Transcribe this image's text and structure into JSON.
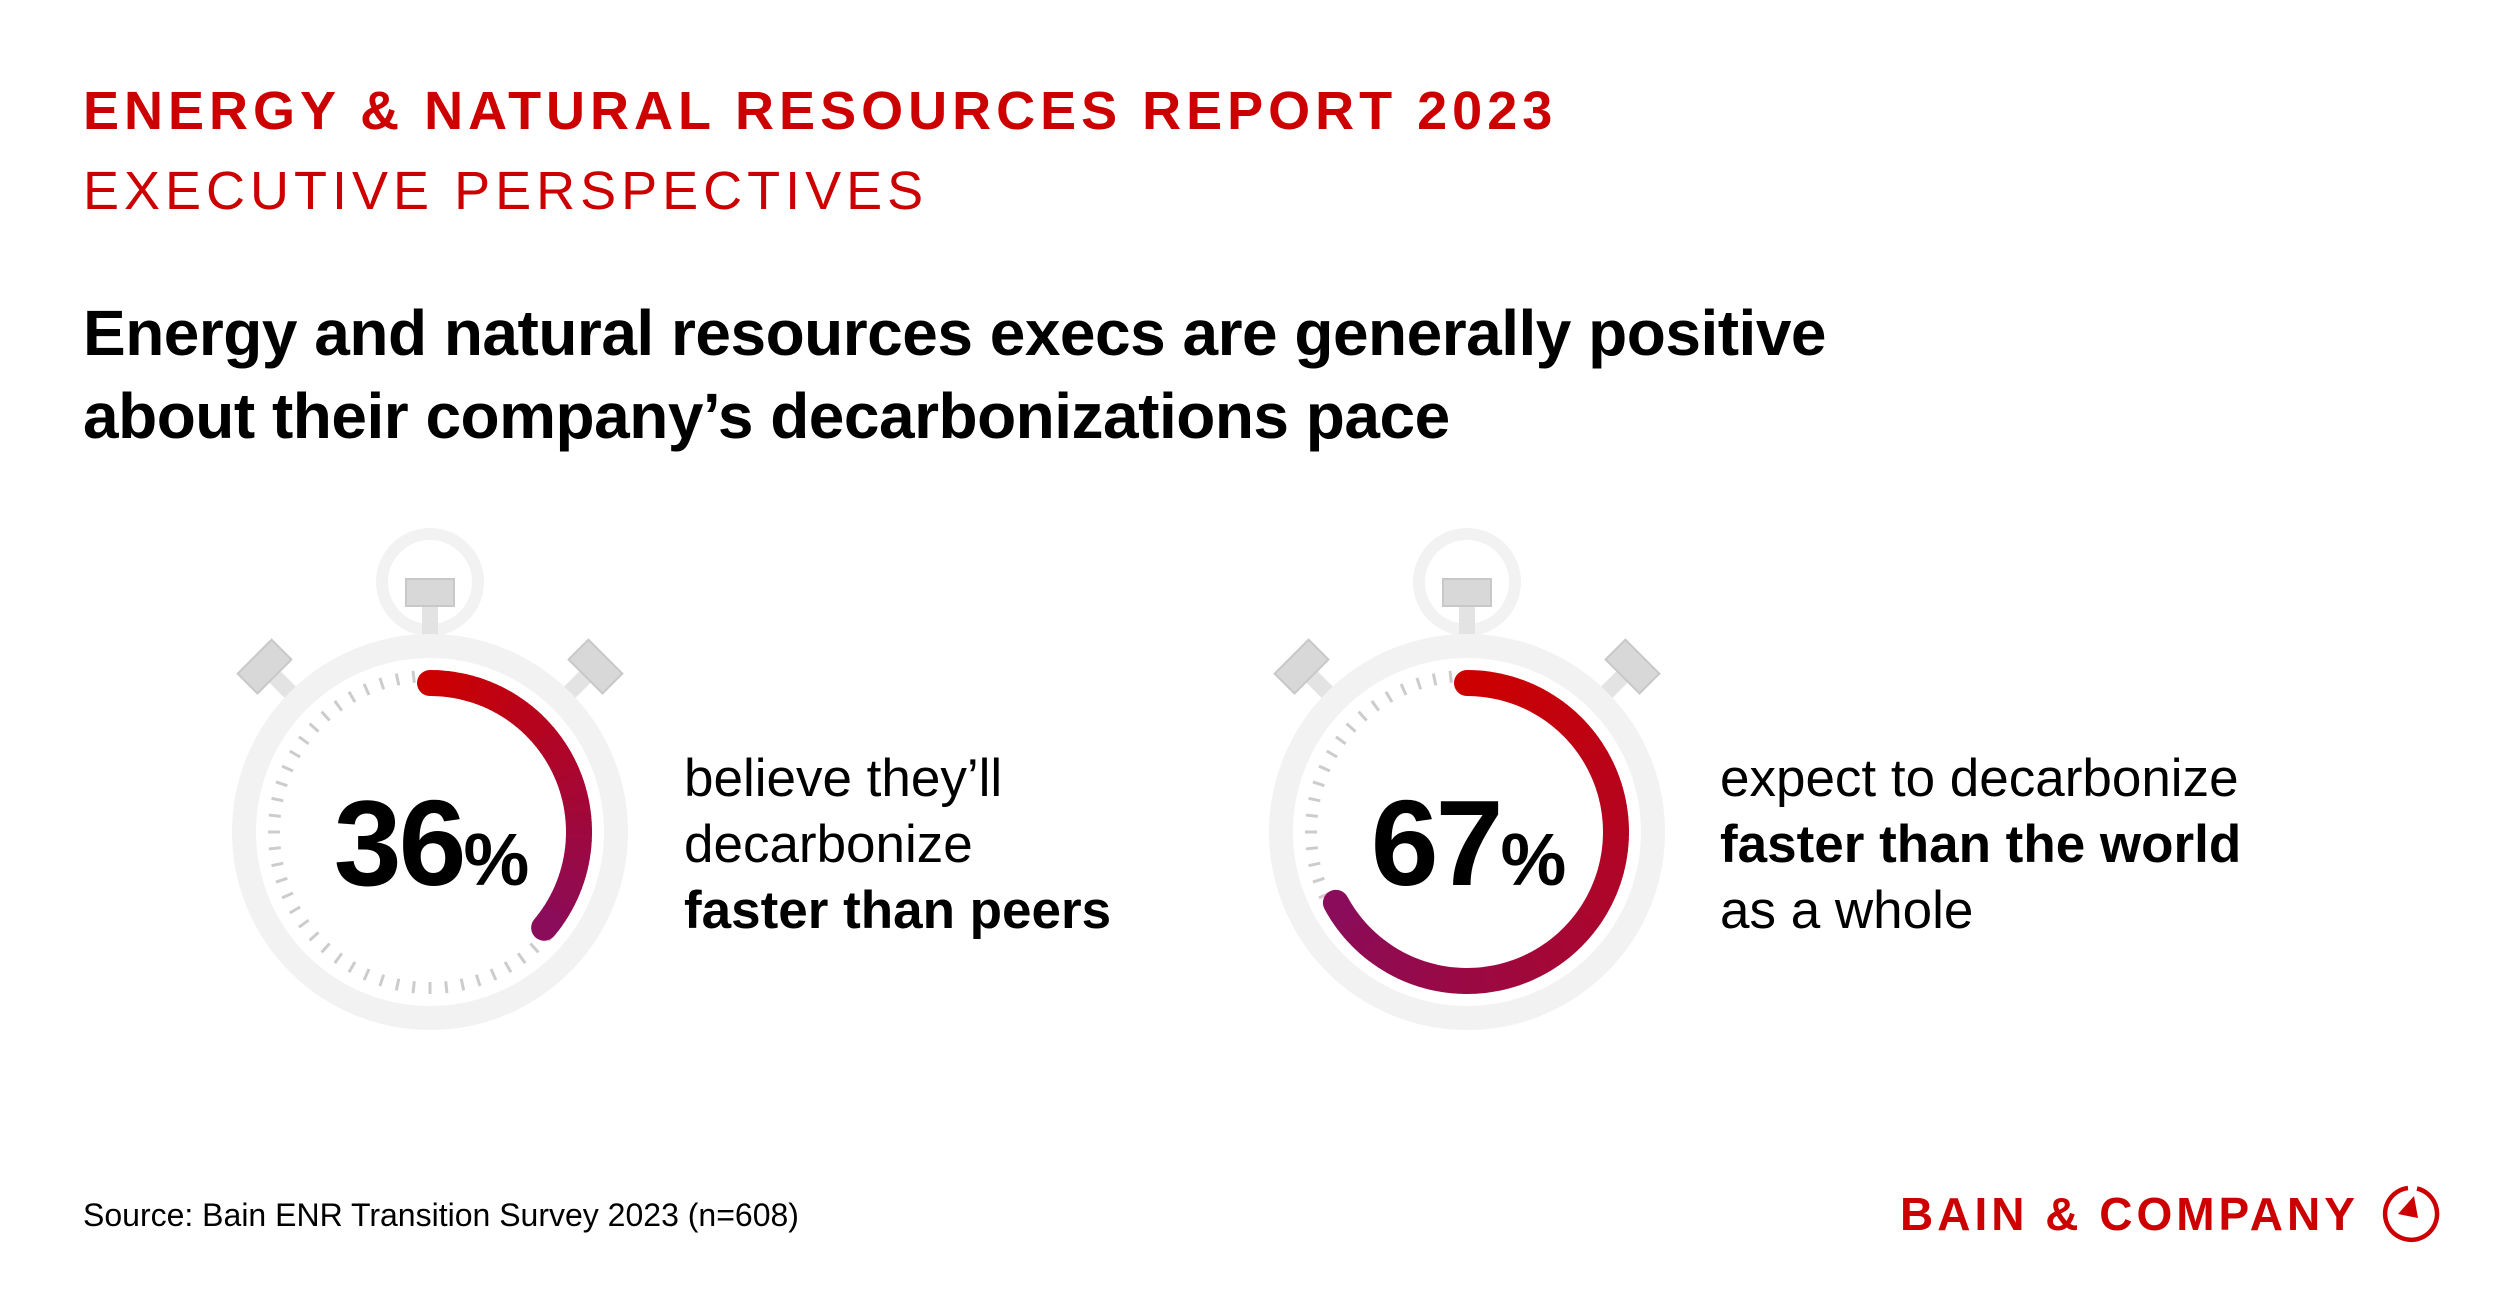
{
  "header": {
    "kicker": "ENERGY & NATURAL RESOURCES REPORT 2023",
    "subkicker": "EXECUTIVE PERSPECTIVES"
  },
  "headline": {
    "line1": "Energy and natural resources execs are generally positive",
    "line2": "about their company’s decarbonizations pace"
  },
  "stats": [
    {
      "value": 36,
      "number": "36",
      "unit": "%",
      "line1": "believe they’ll",
      "line2": "decarbonize",
      "line3": "faster than peers",
      "bold_lines": [
        3
      ]
    },
    {
      "value": 67,
      "number": "67",
      "unit": "%",
      "line1": "expect to decarbonize",
      "line2": "faster than the world",
      "line3": "as a whole",
      "bold_lines": [
        2
      ]
    }
  ],
  "colors": {
    "brand_red": "#cc0000",
    "arc_start": "#cc0000",
    "arc_end": "#8a0c5a",
    "watch_gray": "#f2f2f2",
    "knob_gray": "#e3e3e3",
    "tick_gray": "#cccccc"
  },
  "footer": {
    "source": "Source: Bain ENR Transition Survey 2023 (n=608)",
    "logo_text": "BAIN & COMPANY"
  }
}
